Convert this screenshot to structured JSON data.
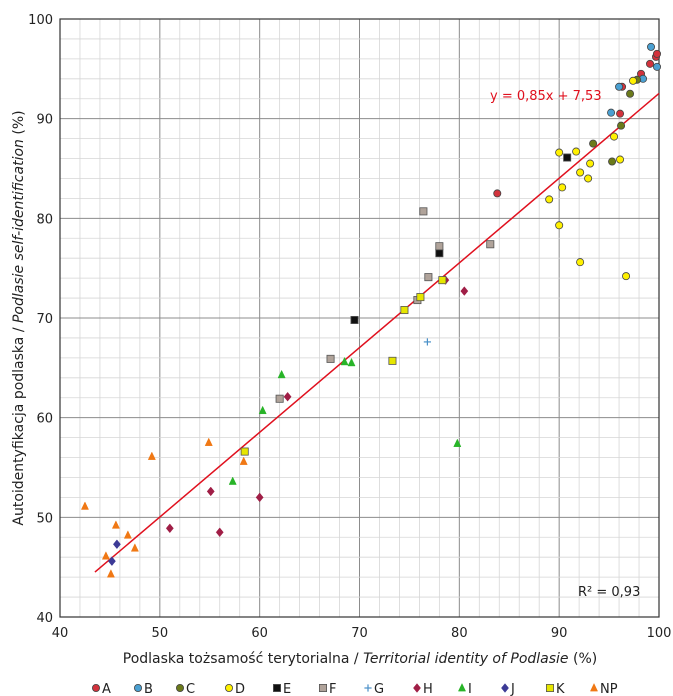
{
  "chart_data": {
    "type": "scatter",
    "xlabel_plain": "Podlaska tożsamość  terytorialna / ",
    "xlabel_italic": "Territorial identity of Podlasie",
    "xlabel_unit": " (%)",
    "ylabel_plain": "Autoidentyfikacja podlaska / ",
    "ylabel_italic": "Podlasie self-identification",
    "ylabel_unit": " (%)",
    "xlim": [
      40,
      100
    ],
    "ylim": [
      40,
      100
    ],
    "xticks": [
      "40",
      "50",
      "60",
      "70",
      "80",
      "90",
      "100"
    ],
    "yticks": [
      "40",
      "50",
      "60",
      "70",
      "80",
      "90",
      "100"
    ],
    "grid": true,
    "legend_position": "bottom",
    "trendline": {
      "label": "y = 0,85x + 7,53",
      "slope": 0.85,
      "intercept": 7.53,
      "x_range": [
        43.5,
        100
      ],
      "color": "#e0101e"
    },
    "r2_label": "R² = 0,93",
    "series": [
      {
        "name": "A",
        "marker": "circle",
        "color": "#d2323c",
        "points": [
          [
            98.2,
            94.5
          ],
          [
            99.1,
            95.5
          ],
          [
            99.7,
            96.2
          ],
          [
            99.8,
            96.5
          ],
          [
            96.3,
            93.2
          ],
          [
            96.1,
            90.5
          ],
          [
            83.8,
            82.5
          ]
        ]
      },
      {
        "name": "B",
        "marker": "circle",
        "color": "#4aa0d2",
        "points": [
          [
            99.2,
            97.2
          ],
          [
            99.8,
            95.2
          ],
          [
            98.4,
            94.0
          ],
          [
            96.0,
            93.2
          ],
          [
            95.2,
            90.6
          ]
        ]
      },
      {
        "name": "C",
        "marker": "circle",
        "color": "#6b7a1a",
        "points": [
          [
            97.1,
            92.5
          ],
          [
            97.8,
            93.9
          ],
          [
            96.2,
            89.3
          ],
          [
            93.4,
            87.5
          ],
          [
            95.3,
            85.7
          ]
        ]
      },
      {
        "name": "D",
        "marker": "circle",
        "color": "#fff100",
        "points": [
          [
            90.0,
            86.6
          ],
          [
            91.7,
            86.7
          ],
          [
            95.5,
            88.2
          ],
          [
            93.1,
            85.5
          ],
          [
            96.1,
            85.9
          ],
          [
            92.1,
            84.6
          ],
          [
            90.3,
            83.1
          ],
          [
            92.9,
            84.0
          ],
          [
            89.0,
            81.9
          ],
          [
            90.0,
            79.3
          ],
          [
            92.1,
            75.6
          ],
          [
            96.7,
            74.2
          ],
          [
            97.4,
            93.8
          ]
        ]
      },
      {
        "name": "E",
        "marker": "square",
        "color": "#101010",
        "points": [
          [
            90.8,
            86.1
          ],
          [
            78.0,
            76.5
          ],
          [
            69.5,
            69.8
          ]
        ]
      },
      {
        "name": "F",
        "marker": "square",
        "color": "#b0a39a",
        "points": [
          [
            76.4,
            80.7
          ],
          [
            78.0,
            77.2
          ],
          [
            83.1,
            77.4
          ],
          [
            76.9,
            74.1
          ],
          [
            75.8,
            71.8
          ],
          [
            62.0,
            61.9
          ],
          [
            67.1,
            65.9
          ]
        ]
      },
      {
        "name": "G",
        "marker": "plus",
        "color": "#4a90c8",
        "points": [
          [
            76.8,
            67.6
          ]
        ]
      },
      {
        "name": "H",
        "marker": "diamond",
        "color": "#a01e46",
        "points": [
          [
            78.6,
            73.8
          ],
          [
            80.5,
            72.7
          ],
          [
            62.8,
            62.1
          ],
          [
            55.1,
            52.6
          ],
          [
            60.0,
            52.0
          ],
          [
            51.0,
            48.9
          ],
          [
            56.0,
            48.5
          ]
        ]
      },
      {
        "name": "I",
        "marker": "triangle",
        "color": "#28b428",
        "points": [
          [
            62.2,
            64.3
          ],
          [
            68.5,
            65.6
          ],
          [
            69.2,
            65.5
          ],
          [
            60.3,
            60.7
          ],
          [
            57.3,
            53.6
          ],
          [
            79.8,
            57.4
          ]
        ]
      },
      {
        "name": "J",
        "marker": "diamond",
        "color": "#3c3a96",
        "points": [
          [
            45.7,
            47.3
          ],
          [
            45.2,
            45.6
          ]
        ]
      },
      {
        "name": "K",
        "marker": "square",
        "color": "#e6e600",
        "points": [
          [
            78.3,
            73.8
          ],
          [
            76.1,
            72.1
          ],
          [
            74.5,
            70.8
          ],
          [
            73.3,
            65.7
          ],
          [
            58.5,
            56.6
          ]
        ]
      },
      {
        "name": "NP",
        "marker": "triangle",
        "color": "#f07814",
        "points": [
          [
            42.5,
            51.1
          ],
          [
            49.2,
            56.1
          ],
          [
            54.9,
            57.5
          ],
          [
            58.4,
            55.6
          ],
          [
            45.6,
            49.2
          ],
          [
            46.8,
            48.2
          ],
          [
            47.5,
            46.9
          ],
          [
            44.6,
            46.1
          ],
          [
            45.1,
            44.3
          ]
        ]
      }
    ]
  }
}
